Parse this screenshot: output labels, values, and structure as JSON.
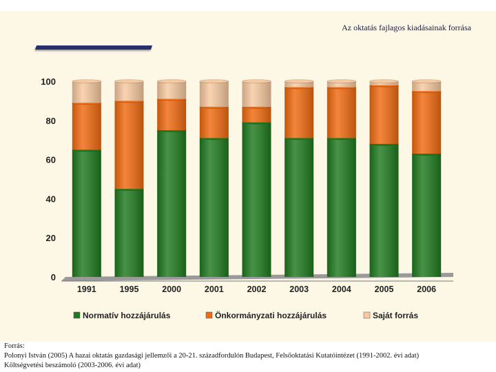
{
  "slide": {
    "title": "Az oktatás fajlagos kiadásainak forrása"
  },
  "source": {
    "heading": "Forrás:",
    "line1": "Polonyi István (2005) A hazai oktatás gazdasági jellemzői a 20-21. századfordulón Budapest, Felsőoktatási Kutatóintézet (1991-2002. évi adat)",
    "line2": "Költségvetési beszámoló (2003-2006. évi adat)"
  },
  "chart_data": {
    "type": "bar",
    "stacked": true,
    "categories": [
      "1991",
      "1995",
      "2000",
      "2001",
      "2002",
      "2003",
      "2004",
      "2005",
      "2006"
    ],
    "series": [
      {
        "name": "Normatív hozzájárulás",
        "color": "#1f7a1f",
        "values": [
          65,
          45,
          75,
          71,
          79,
          71,
          71,
          68,
          63
        ]
      },
      {
        "name": "Önkormányzati hozzájárulás",
        "color": "#f06a10",
        "values": [
          24,
          45,
          16,
          16,
          8,
          26,
          26,
          30,
          32
        ]
      },
      {
        "name": "Saját forrás",
        "color": "#f7c9a0",
        "values": [
          11,
          10,
          9,
          13,
          13,
          3,
          3,
          2,
          5
        ]
      }
    ],
    "yticks": [
      0,
      20,
      40,
      60,
      80,
      100
    ],
    "ylim": [
      0,
      100
    ],
    "legend_position": "bottom",
    "grid": false
  }
}
